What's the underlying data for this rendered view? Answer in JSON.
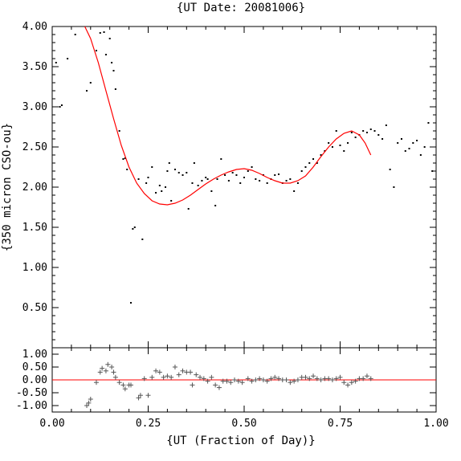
{
  "chart_data": {
    "title": "{UT Date: 20081006}",
    "xlabel": "{UT (Fraction of Day)}",
    "x_ticks": [
      "0.00",
      "0.25",
      "0.50",
      "0.75",
      "1.00"
    ],
    "top_panel": {
      "type": "scatter",
      "ylabel": "{350 micron CSO-ou}",
      "xlim": [
        0,
        1
      ],
      "ylim": [
        0,
        4
      ],
      "y_ticks": [
        "0.50",
        "1.00",
        "1.50",
        "2.00",
        "2.50",
        "3.00",
        "3.50",
        "4.00"
      ],
      "series": [
        {
          "kind": "points",
          "color": "#000000",
          "x": [
            0.01,
            0.02,
            0.025,
            0.04,
            0.06,
            0.09,
            0.1,
            0.115,
            0.125,
            0.135,
            0.14,
            0.15,
            0.155,
            0.16,
            0.165,
            0.175,
            0.185,
            0.19,
            0.195,
            0.205,
            0.21,
            0.215,
            0.225,
            0.235,
            0.245,
            0.25,
            0.26,
            0.27,
            0.28,
            0.285,
            0.295,
            0.3,
            0.305,
            0.31,
            0.32,
            0.33,
            0.34,
            0.35,
            0.355,
            0.365,
            0.37,
            0.38,
            0.39,
            0.4,
            0.405,
            0.415,
            0.425,
            0.43,
            0.44,
            0.45,
            0.46,
            0.47,
            0.48,
            0.49,
            0.5,
            0.51,
            0.52,
            0.53,
            0.54,
            0.55,
            0.56,
            0.57,
            0.58,
            0.59,
            0.6,
            0.61,
            0.62,
            0.63,
            0.64,
            0.65,
            0.66,
            0.67,
            0.68,
            0.69,
            0.7,
            0.71,
            0.72,
            0.73,
            0.74,
            0.75,
            0.76,
            0.77,
            0.78,
            0.79,
            0.8,
            0.81,
            0.82,
            0.83,
            0.84,
            0.85,
            0.86,
            0.87,
            0.88,
            0.89,
            0.9,
            0.91,
            0.92,
            0.93,
            0.94,
            0.95,
            0.96,
            0.97,
            0.98,
            0.99
          ],
          "y": [
            3.55,
            3.0,
            3.02,
            3.6,
            3.9,
            3.2,
            3.3,
            3.7,
            3.92,
            3.93,
            3.65,
            3.85,
            3.55,
            3.45,
            3.22,
            2.7,
            2.35,
            2.36,
            2.22,
            0.56,
            1.48,
            1.5,
            2.1,
            1.35,
            2.05,
            2.12,
            2.25,
            1.93,
            2.02,
            1.95,
            2.0,
            2.2,
            2.3,
            1.83,
            2.22,
            2.18,
            2.15,
            2.18,
            1.73,
            2.05,
            2.3,
            2.02,
            2.08,
            2.12,
            2.1,
            1.95,
            1.77,
            2.1,
            2.35,
            2.15,
            2.08,
            2.18,
            2.15,
            2.05,
            2.12,
            2.2,
            2.25,
            2.1,
            2.08,
            2.15,
            2.05,
            2.1,
            2.15,
            2.16,
            2.05,
            2.08,
            2.1,
            1.95,
            2.05,
            2.2,
            2.25,
            2.3,
            2.35,
            2.3,
            2.4,
            2.45,
            2.55,
            2.5,
            2.7,
            2.52,
            2.45,
            2.55,
            2.68,
            2.62,
            2.65,
            2.7,
            2.68,
            2.72,
            2.7,
            2.65,
            2.6,
            2.77,
            2.22,
            2.0,
            2.55,
            2.6,
            2.45,
            2.48,
            2.55,
            2.58,
            2.4,
            2.5,
            2.8,
            2.2
          ]
        },
        {
          "kind": "fit",
          "color": "#ff0000",
          "x": [
            0.085,
            0.1,
            0.12,
            0.14,
            0.16,
            0.18,
            0.2,
            0.22,
            0.24,
            0.26,
            0.28,
            0.3,
            0.32,
            0.34,
            0.36,
            0.38,
            0.4,
            0.42,
            0.44,
            0.46,
            0.48,
            0.5,
            0.52,
            0.54,
            0.56,
            0.58,
            0.6,
            0.62,
            0.64,
            0.66,
            0.68,
            0.7,
            0.72,
            0.74,
            0.76,
            0.78,
            0.8,
            0.815,
            0.83
          ],
          "y": [
            4.0,
            3.85,
            3.55,
            3.2,
            2.85,
            2.52,
            2.25,
            2.05,
            1.92,
            1.83,
            1.79,
            1.78,
            1.8,
            1.84,
            1.9,
            1.97,
            2.04,
            2.1,
            2.15,
            2.19,
            2.22,
            2.23,
            2.21,
            2.17,
            2.12,
            2.08,
            2.05,
            2.05,
            2.08,
            2.14,
            2.25,
            2.38,
            2.5,
            2.6,
            2.67,
            2.7,
            2.65,
            2.55,
            2.4
          ]
        }
      ]
    },
    "bottom_panel": {
      "type": "scatter",
      "xlim": [
        0,
        1
      ],
      "ylim": [
        -1.25,
        1.25
      ],
      "y_ticks": [
        "-1.00",
        "-0.50",
        "0.00",
        "0.50",
        "1.00"
      ],
      "zero_line_color": "#ff0000",
      "points_color": "#555555",
      "x": [
        0.09,
        0.095,
        0.1,
        0.115,
        0.125,
        0.13,
        0.14,
        0.145,
        0.155,
        0.16,
        0.165,
        0.175,
        0.185,
        0.19,
        0.2,
        0.205,
        0.225,
        0.23,
        0.24,
        0.25,
        0.26,
        0.27,
        0.28,
        0.29,
        0.3,
        0.31,
        0.32,
        0.33,
        0.34,
        0.35,
        0.36,
        0.365,
        0.375,
        0.385,
        0.395,
        0.405,
        0.415,
        0.425,
        0.435,
        0.445,
        0.455,
        0.465,
        0.475,
        0.485,
        0.495,
        0.51,
        0.52,
        0.53,
        0.54,
        0.55,
        0.56,
        0.57,
        0.58,
        0.59,
        0.6,
        0.61,
        0.62,
        0.63,
        0.64,
        0.65,
        0.66,
        0.67,
        0.68,
        0.69,
        0.7,
        0.71,
        0.72,
        0.73,
        0.74,
        0.75,
        0.76,
        0.77,
        0.78,
        0.79,
        0.8,
        0.81,
        0.82,
        0.83
      ],
      "y": [
        -1.0,
        -0.9,
        -0.75,
        -0.1,
        0.3,
        0.45,
        0.35,
        0.6,
        0.5,
        0.3,
        0.1,
        -0.1,
        -0.2,
        -0.35,
        -0.2,
        -0.2,
        -0.7,
        -0.6,
        0.05,
        -0.6,
        0.1,
        0.35,
        0.3,
        0.1,
        0.15,
        0.1,
        0.5,
        0.2,
        0.35,
        0.3,
        0.3,
        -0.2,
        0.2,
        0.1,
        0.05,
        -0.05,
        0.1,
        -0.2,
        -0.3,
        -0.05,
        -0.05,
        -0.1,
        0.0,
        -0.05,
        -0.1,
        0.05,
        -0.05,
        0.0,
        0.05,
        0.0,
        -0.05,
        0.05,
        0.1,
        0.05,
        0.0,
        0.0,
        -0.1,
        -0.05,
        0.0,
        0.1,
        0.1,
        0.05,
        0.15,
        0.05,
        0.0,
        0.05,
        0.05,
        0.0,
        0.05,
        0.1,
        -0.1,
        -0.2,
        -0.1,
        -0.05,
        0.05,
        0.05,
        0.15,
        0.05
      ]
    }
  }
}
